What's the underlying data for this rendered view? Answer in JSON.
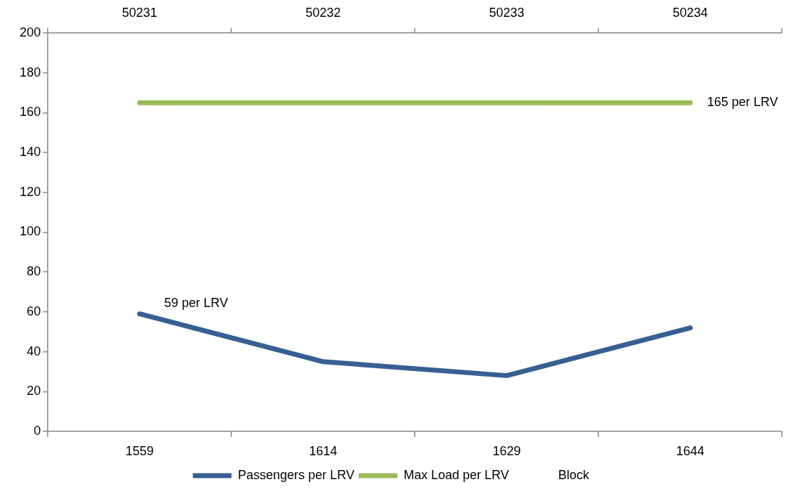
{
  "chart_data": {
    "type": "line",
    "categories": [
      "1559",
      "1614",
      "1629",
      "1644"
    ],
    "series": [
      {
        "name": "Passengers per LRV",
        "color": "#376092",
        "values": [
          59,
          35,
          28,
          52
        ]
      },
      {
        "name": "Max Load per LRV",
        "color": "#9bbb59",
        "values": [
          165,
          165,
          165,
          165
        ]
      },
      {
        "name": "Block",
        "values": [
          null,
          null,
          null,
          null
        ]
      }
    ],
    "ylim": [
      0,
      200
    ],
    "yticks": [
      0,
      20,
      40,
      60,
      80,
      100,
      120,
      140,
      160,
      180,
      200
    ],
    "x2lim": [
      50230.5,
      50234.5
    ],
    "x2ticks": [
      50231,
      50232,
      50233,
      50234
    ],
    "annotations": [
      {
        "text": "59 per LRV",
        "x": "1559",
        "y": 59
      },
      {
        "text": "165 per LRV",
        "x": "1644",
        "y": 165
      }
    ],
    "marker": "none",
    "legend": "bottom"
  }
}
